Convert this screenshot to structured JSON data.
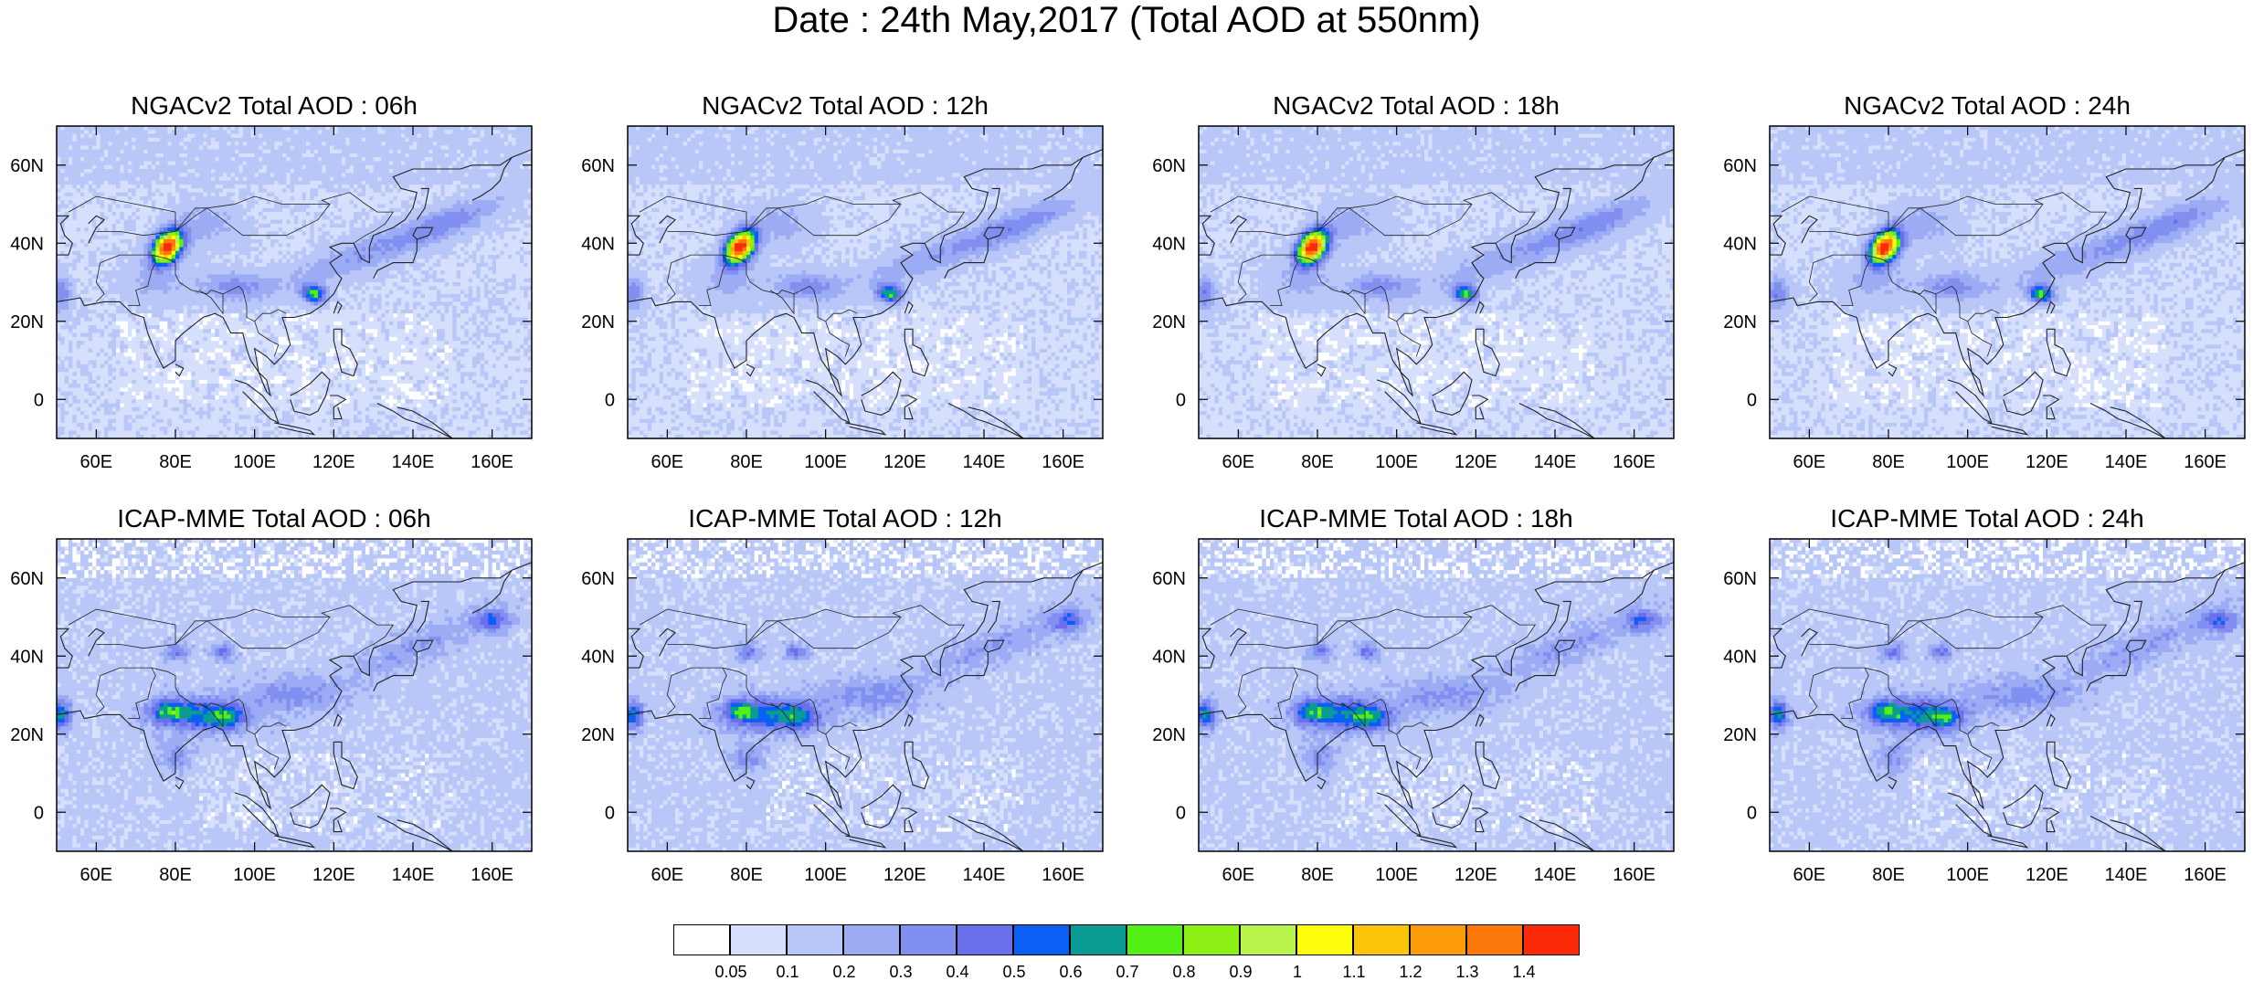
{
  "title": "Date : 24th May,2017 (Total AOD at 550nm)",
  "chart_data": {
    "type": "heatmap",
    "title": "Date : 24th May,2017 (Total AOD at 550nm)",
    "grid": false,
    "legend": "bottom-center colorbar",
    "xlim": [
      50,
      170
    ],
    "ylim": [
      -10,
      70
    ],
    "x_ticks": [
      "60E",
      "80E",
      "100E",
      "120E",
      "140E",
      "160E"
    ],
    "y_ticks": [
      "0",
      "20N",
      "40N",
      "60N"
    ],
    "panels": [
      {
        "title": "NGACv2 Total AOD : 06h",
        "model": "NGACv2",
        "hour": 6
      },
      {
        "title": "NGACv2 Total AOD : 12h",
        "model": "NGACv2",
        "hour": 12
      },
      {
        "title": "NGACv2 Total AOD : 18h",
        "model": "NGACv2",
        "hour": 18
      },
      {
        "title": "NGACv2 Total AOD : 24h",
        "model": "NGACv2",
        "hour": 24
      },
      {
        "title": "ICAP-MME Total AOD : 06h",
        "model": "ICAP-MME",
        "hour": 6
      },
      {
        "title": "ICAP-MME Total AOD : 12h",
        "model": "ICAP-MME",
        "hour": 12
      },
      {
        "title": "ICAP-MME Total AOD : 18h",
        "model": "ICAP-MME",
        "hour": 18
      },
      {
        "title": "ICAP-MME Total AOD : 24h",
        "model": "ICAP-MME",
        "hour": 24
      }
    ],
    "colorbar": {
      "labels": [
        "0.05",
        "0.1",
        "0.2",
        "0.3",
        "0.4",
        "0.5",
        "0.6",
        "0.7",
        "0.8",
        "0.9",
        "1",
        "1.1",
        "1.2",
        "1.3",
        "1.4"
      ],
      "colors": [
        "#ffffff",
        "#d6dffc",
        "#b8c6f8",
        "#9bacf4",
        "#8190f0",
        "#6a70ec",
        "#0a60f4",
        "#0a9b94",
        "#52f014",
        "#8cf014",
        "#b8f44c",
        "#fdfd0a",
        "#fdc50a",
        "#fd9c0a",
        "#fd780a",
        "#fd2a0a"
      ]
    },
    "features": [
      {
        "panels": "NGACv2",
        "lon": 78,
        "lat": 39,
        "aod": 1.4
      },
      {
        "panels": "NGACv2",
        "lon": 115,
        "lat": 27,
        "aod": 0.7
      }
    ]
  }
}
